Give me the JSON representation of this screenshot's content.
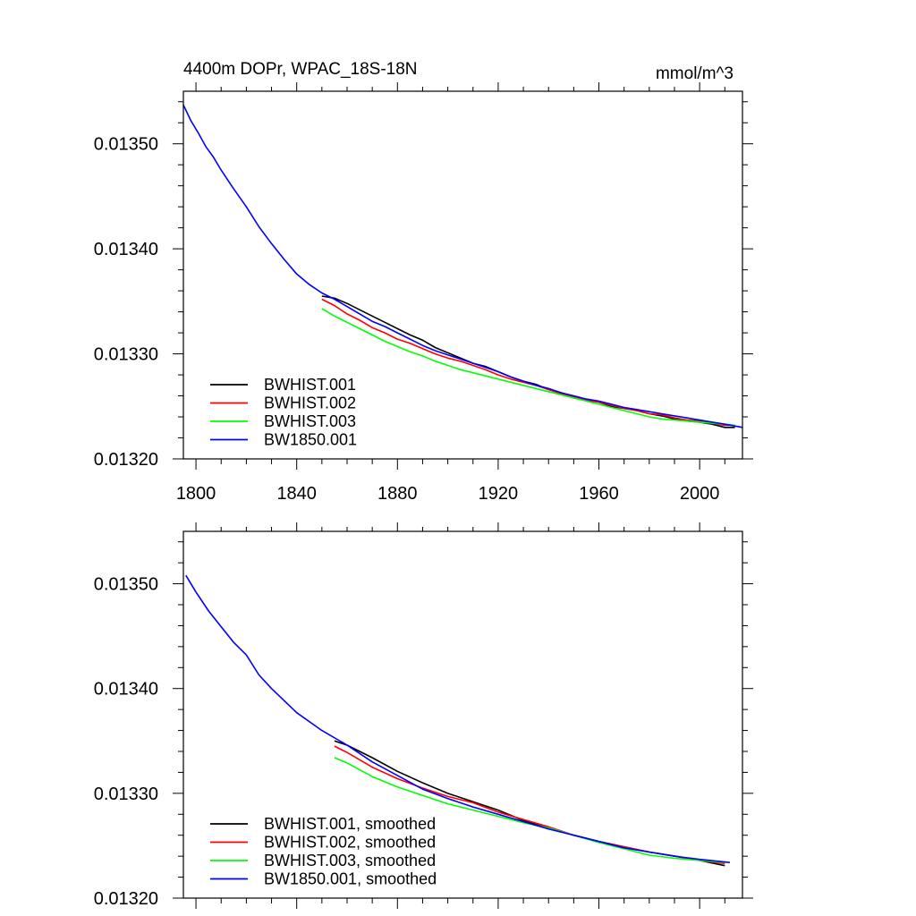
{
  "chart_data": [
    {
      "type": "line",
      "title": "4400m DOPr, WPAC_18S-18N",
      "units": "mmol/m^3",
      "xlabel": "",
      "ylabel": "",
      "xlim": [
        1795,
        2017
      ],
      "ylim": [
        0.0132,
        0.01355
      ],
      "xticks": [
        1800,
        1840,
        1880,
        1920,
        1960,
        2000
      ],
      "xtick_labels": [
        "1800",
        "1840",
        "1880",
        "1920",
        "1960",
        "2000"
      ],
      "yticks": [
        0.0132,
        0.0133,
        0.0134,
        0.0135
      ],
      "ytick_labels": [
        "0.01320",
        "0.01330",
        "0.01340",
        "0.01350"
      ],
      "legend_position": "bottom-left",
      "series": [
        {
          "name": "BWHIST.001",
          "color": "#000000",
          "x": [
            1850,
            1855,
            1860,
            1865,
            1870,
            1875,
            1880,
            1885,
            1890,
            1895,
            1900,
            1905,
            1910,
            1915,
            1920,
            1925,
            1930,
            1935,
            1940,
            1945,
            1950,
            1955,
            1960,
            1965,
            1970,
            1975,
            1980,
            1985,
            1990,
            1995,
            2000,
            2005,
            2010,
            2014
          ],
          "y": [
            0.013355,
            0.013353,
            0.013348,
            0.013342,
            0.013336,
            0.01333,
            0.013324,
            0.013318,
            0.013313,
            0.013306,
            0.013301,
            0.013296,
            0.013291,
            0.013288,
            0.013283,
            0.013278,
            0.013274,
            0.013271,
            0.013266,
            0.013263,
            0.013258,
            0.013256,
            0.013254,
            0.01325,
            0.013248,
            0.013246,
            0.013243,
            0.013241,
            0.013238,
            0.013236,
            0.013235,
            0.013233,
            0.01323,
            0.01323
          ]
        },
        {
          "name": "BWHIST.002",
          "color": "#ff0000",
          "x": [
            1850,
            1855,
            1860,
            1865,
            1870,
            1875,
            1880,
            1885,
            1890,
            1895,
            1900,
            1905,
            1910,
            1915,
            1920,
            1925,
            1930,
            1935,
            1940,
            1945,
            1950,
            1955,
            1960,
            1965,
            1970,
            1975,
            1980,
            1985,
            1990,
            1995,
            2000,
            2005,
            2010,
            2014
          ],
          "y": [
            0.013352,
            0.013346,
            0.013338,
            0.013332,
            0.013325,
            0.01332,
            0.013314,
            0.01331,
            0.013305,
            0.0133,
            0.013296,
            0.013293,
            0.013289,
            0.013285,
            0.01328,
            0.013276,
            0.013273,
            0.01327,
            0.013266,
            0.013262,
            0.013259,
            0.013256,
            0.013254,
            0.013251,
            0.013248,
            0.013246,
            0.013243,
            0.013242,
            0.013239,
            0.013237,
            0.013236,
            0.013234,
            0.013232,
            0.013232
          ]
        },
        {
          "name": "BWHIST.003",
          "color": "#00ff00",
          "x": [
            1850,
            1855,
            1860,
            1865,
            1870,
            1875,
            1880,
            1885,
            1890,
            1895,
            1900,
            1905,
            1910,
            1915,
            1920,
            1925,
            1930,
            1935,
            1940,
            1945,
            1950,
            1955,
            1960,
            1965,
            1970,
            1975,
            1980,
            1985,
            1990,
            1995,
            2000,
            2005,
            2010,
            2014
          ],
          "y": [
            0.013343,
            0.013336,
            0.01333,
            0.013324,
            0.013318,
            0.013312,
            0.013307,
            0.013302,
            0.013298,
            0.013293,
            0.013289,
            0.013285,
            0.013282,
            0.013279,
            0.013276,
            0.013273,
            0.01327,
            0.013267,
            0.013264,
            0.013261,
            0.013258,
            0.013255,
            0.013252,
            0.013249,
            0.013246,
            0.013243,
            0.01324,
            0.013238,
            0.013237,
            0.013236,
            0.013235,
            0.013234,
            0.013233,
            0.013232
          ]
        },
        {
          "name": "BW1850.001",
          "color": "#0000ff",
          "x": [
            1795,
            1798,
            1801,
            1804,
            1807,
            1810,
            1815,
            1820,
            1825,
            1830,
            1835,
            1840,
            1845,
            1850,
            1855,
            1860,
            1865,
            1870,
            1875,
            1880,
            1885,
            1890,
            1895,
            1900,
            1905,
            1910,
            1915,
            1920,
            1925,
            1930,
            1935,
            1940,
            1945,
            1950,
            1955,
            1960,
            1965,
            1970,
            1975,
            1980,
            1985,
            1990,
            1995,
            2000,
            2005,
            2010,
            2017
          ],
          "y": [
            0.013537,
            0.013522,
            0.01351,
            0.013497,
            0.013487,
            0.013475,
            0.013457,
            0.01344,
            0.013421,
            0.013405,
            0.01339,
            0.013376,
            0.013366,
            0.013358,
            0.013352,
            0.013345,
            0.013338,
            0.013331,
            0.013326,
            0.01332,
            0.013314,
            0.013308,
            0.013303,
            0.013299,
            0.013295,
            0.013291,
            0.013287,
            0.013283,
            0.013278,
            0.013274,
            0.01327,
            0.013267,
            0.013263,
            0.01326,
            0.013257,
            0.013255,
            0.013252,
            0.013249,
            0.013247,
            0.013245,
            0.013243,
            0.013241,
            0.013239,
            0.013237,
            0.013235,
            0.013233,
            0.01323
          ]
        }
      ]
    },
    {
      "type": "line",
      "title": "",
      "units": "",
      "xlabel": "",
      "ylabel": "",
      "xlim": [
        1795,
        2017
      ],
      "ylim": [
        0.0132,
        0.01355
      ],
      "xticks": [
        1800,
        1840,
        1880,
        1920,
        1960,
        2000
      ],
      "xtick_labels": [],
      "yticks": [
        0.0132,
        0.0133,
        0.0134,
        0.0135
      ],
      "ytick_labels": [
        "0.01320",
        "0.01330",
        "0.01340",
        "0.01350"
      ],
      "legend_position": "bottom-left",
      "series": [
        {
          "name": "BWHIST.001, smoothed",
          "color": "#000000",
          "x": [
            1855,
            1860,
            1870,
            1880,
            1890,
            1900,
            1910,
            1920,
            1930,
            1940,
            1950,
            1960,
            1970,
            1980,
            1990,
            2000,
            2010
          ],
          "y": [
            0.01335,
            0.013346,
            0.013334,
            0.013321,
            0.01331,
            0.0133,
            0.013292,
            0.013284,
            0.013274,
            0.013267,
            0.01326,
            0.013254,
            0.013249,
            0.013244,
            0.01324,
            0.013236,
            0.013231
          ]
        },
        {
          "name": "BWHIST.002, smoothed",
          "color": "#ff0000",
          "x": [
            1855,
            1860,
            1870,
            1880,
            1890,
            1900,
            1910,
            1920,
            1930,
            1940,
            1950,
            1960,
            1970,
            1980,
            1990,
            2000,
            2010
          ],
          "y": [
            0.013345,
            0.013339,
            0.013325,
            0.013314,
            0.013305,
            0.013297,
            0.013291,
            0.013282,
            0.013275,
            0.013268,
            0.01326,
            0.013254,
            0.013249,
            0.013244,
            0.01324,
            0.013236,
            0.013233
          ]
        },
        {
          "name": "BWHIST.003, smoothed",
          "color": "#00ff00",
          "x": [
            1855,
            1860,
            1870,
            1880,
            1890,
            1900,
            1910,
            1920,
            1930,
            1940,
            1950,
            1960,
            1970,
            1980,
            1990,
            2000,
            2010
          ],
          "y": [
            0.013334,
            0.013329,
            0.013316,
            0.013306,
            0.013298,
            0.01329,
            0.013284,
            0.013278,
            0.013272,
            0.013267,
            0.01326,
            0.013253,
            0.013247,
            0.013241,
            0.013238,
            0.013236,
            0.013234
          ]
        },
        {
          "name": "BW1850.001, smoothed",
          "color": "#0000ff",
          "x": [
            1796,
            1800,
            1805,
            1810,
            1815,
            1820,
            1825,
            1830,
            1840,
            1850,
            1860,
            1870,
            1880,
            1890,
            1900,
            1910,
            1920,
            1930,
            1940,
            1950,
            1960,
            1970,
            1980,
            1990,
            2000,
            2012
          ],
          "y": [
            0.013508,
            0.013492,
            0.013474,
            0.013459,
            0.013444,
            0.013432,
            0.013413,
            0.0134,
            0.013377,
            0.01336,
            0.013346,
            0.01333,
            0.013317,
            0.013304,
            0.013295,
            0.013287,
            0.01328,
            0.013273,
            0.013266,
            0.01326,
            0.013254,
            0.013248,
            0.013244,
            0.01324,
            0.013237,
            0.013234
          ]
        }
      ]
    }
  ]
}
